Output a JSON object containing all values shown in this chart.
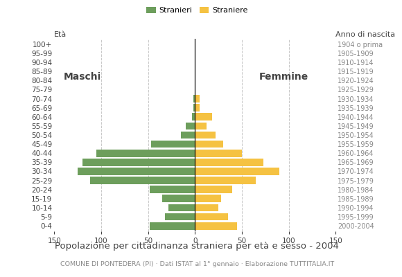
{
  "age_groups_bottom_to_top": [
    "0-4",
    "5-9",
    "10-14",
    "15-19",
    "20-24",
    "25-29",
    "30-34",
    "35-39",
    "40-44",
    "45-49",
    "50-54",
    "55-59",
    "60-64",
    "65-69",
    "70-74",
    "75-79",
    "80-84",
    "85-89",
    "90-94",
    "95-99",
    "100+"
  ],
  "birth_years_bottom_to_top": [
    "2000-2004",
    "1995-1999",
    "1990-1994",
    "1985-1989",
    "1980-1984",
    "1975-1979",
    "1970-1974",
    "1965-1969",
    "1960-1964",
    "1955-1959",
    "1950-1954",
    "1945-1949",
    "1940-1944",
    "1935-1939",
    "1930-1934",
    "1925-1929",
    "1920-1924",
    "1915-1919",
    "1910-1914",
    "1905-1909",
    "1904 o prima"
  ],
  "males_bottom_to_top": [
    48,
    32,
    28,
    35,
    48,
    112,
    125,
    120,
    105,
    47,
    15,
    10,
    3,
    2,
    2,
    0,
    0,
    0,
    0,
    0,
    0
  ],
  "females_bottom_to_top": [
    45,
    35,
    25,
    28,
    40,
    65,
    90,
    73,
    50,
    30,
    22,
    12,
    18,
    5,
    5,
    0,
    0,
    0,
    0,
    0,
    0
  ],
  "male_color": "#6d9e5c",
  "female_color": "#f5c242",
  "bar_height": 0.82,
  "xlim": 150,
  "legend_male": "Stranieri",
  "legend_female": "Straniere",
  "title": "Popolazione per cittadinanza straniera per età e sesso - 2004",
  "subtitle": "COMUNE DI PONTEDERA (PI) · Dati ISTAT al 1° gennaio · Elaborazione TUTTITALIA.IT",
  "label_eta": "Età",
  "label_anno": "Anno di nascita",
  "label_maschi": "Maschi",
  "label_femmine": "Femmine",
  "bg_color": "#ffffff",
  "grid_color": "#c8c8c8",
  "text_color": "#444444",
  "right_label_color": "#888888",
  "axis_fontsize": 7.5,
  "title_fontsize": 9.5,
  "subtitle_fontsize": 6.8,
  "maschi_femmine_fontsize": 10
}
